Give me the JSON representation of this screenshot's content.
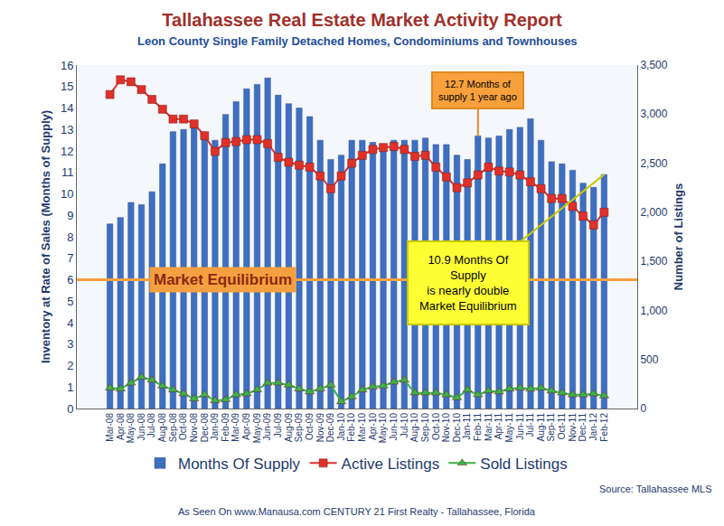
{
  "chart_data": {
    "type": "bar",
    "title": "Tallahassee Real Estate Market Activity Report",
    "subtitle": "Leon County Single Family Detached Homes, Condominiums and Townhouses",
    "y_label": "Inventory at Rate of Sales (Months of Supply)",
    "y2_label": "Number of Listings",
    "categories": [
      "Mar-08",
      "Apr-08",
      "May-08",
      "Jun-08",
      "Jul-08",
      "Aug-08",
      "Sep-08",
      "Oct-08",
      "Nov-08",
      "Dec-08",
      "Jan-09",
      "Feb-09",
      "Mar-09",
      "Apr-09",
      "May-09",
      "Jun-09",
      "Jul-09",
      "Aug-09",
      "Sep-09",
      "Oct-09",
      "Nov-09",
      "Dec-09",
      "Jan-10",
      "Feb-10",
      "Mar-10",
      "Apr-10",
      "May-10",
      "Jun-10",
      "Jul-10",
      "Aug-10",
      "Sep-10",
      "Oct-10",
      "Nov-10",
      "Dec-10",
      "Jan-11",
      "Feb-11",
      "Mar-11",
      "Apr-11",
      "May-11",
      "Jun-11",
      "Jul-11",
      "Aug-11",
      "Sep-11",
      "Oct-11",
      "Nov-11",
      "Dec-11",
      "Jan-12",
      "Feb-12"
    ],
    "series": [
      {
        "name": "Months Of Supply",
        "type": "bar",
        "color": "#3f6fc0",
        "values": [
          8.6,
          8.9,
          9.6,
          9.5,
          10.1,
          11.4,
          12.9,
          13.0,
          13.1,
          12.7,
          12.5,
          13.7,
          14.3,
          14.9,
          15.1,
          15.4,
          14.6,
          14.2,
          14.0,
          13.6,
          12.5,
          11.6,
          11.8,
          12.5,
          12.5,
          12.4,
          12.3,
          12.5,
          12.5,
          12.5,
          12.6,
          12.3,
          12.3,
          11.8,
          11.6,
          12.7,
          12.6,
          12.7,
          13.0,
          13.1,
          13.5,
          12.5,
          11.5,
          11.4,
          11.1,
          10.5,
          10.3,
          10.9
        ]
      },
      {
        "name": "Active Listings",
        "type": "line",
        "axis": "y2",
        "color": "#e0302a",
        "marker": "square",
        "values": [
          3200,
          3350,
          3330,
          3250,
          3150,
          3050,
          2950,
          2950,
          2900,
          2780,
          2620,
          2710,
          2720,
          2740,
          2740,
          2700,
          2560,
          2510,
          2480,
          2460,
          2370,
          2240,
          2370,
          2500,
          2580,
          2640,
          2660,
          2670,
          2640,
          2570,
          2580,
          2460,
          2360,
          2250,
          2300,
          2380,
          2460,
          2420,
          2410,
          2380,
          2310,
          2240,
          2140,
          2140,
          2060,
          1960,
          1870,
          2000
        ]
      },
      {
        "name": "Sold Listings",
        "type": "line",
        "axis": "y2",
        "color": "#3cb34a",
        "marker": "triangle",
        "values": [
          210,
          200,
          260,
          320,
          290,
          230,
          190,
          150,
          100,
          140,
          80,
          90,
          140,
          150,
          190,
          260,
          260,
          240,
          200,
          170,
          200,
          240,
          70,
          120,
          190,
          220,
          230,
          270,
          290,
          160,
          160,
          160,
          140,
          110,
          190,
          140,
          180,
          170,
          200,
          210,
          200,
          210,
          180,
          160,
          140,
          140,
          150,
          130
        ]
      }
    ],
    "ylim": [
      0,
      16
    ],
    "yticks": [
      0,
      1,
      2,
      3,
      4,
      5,
      6,
      7,
      8,
      9,
      10,
      11,
      12,
      13,
      14,
      15,
      16
    ],
    "y2lim": [
      0,
      3500
    ],
    "y2ticks": [
      0,
      500,
      {
        "value": 1000,
        "label": "1,000"
      },
      {
        "value": 1500,
        "label": "1,500"
      },
      {
        "value": 2000,
        "label": "2,000"
      },
      {
        "value": 2500,
        "label": "2,500"
      },
      {
        "value": 3000,
        "label": "3,000"
      },
      {
        "value": 3500,
        "label": "3,500"
      }
    ],
    "grid": false,
    "legend": "bottom",
    "reference_line": {
      "value": 6,
      "label": "Market Equilibrium",
      "color": "#f5a040"
    },
    "annotations": [
      {
        "lines": [
          "12.7 Months of",
          "supply 1 year ago"
        ],
        "category": "Feb-11",
        "value": 12.7,
        "color": "#f7a03c"
      },
      {
        "lines": [
          "10.9 Months Of",
          "Supply",
          "is nearly double",
          "Market Equilibrium"
        ],
        "category": "Feb-12",
        "value": 10.9,
        "color": "#ffff33"
      }
    ],
    "source": "Source: Tallahassee MLS",
    "credit": "As Seen On www.Manausa.com CENTURY 21 First Realty - Tallahassee, Florida"
  }
}
